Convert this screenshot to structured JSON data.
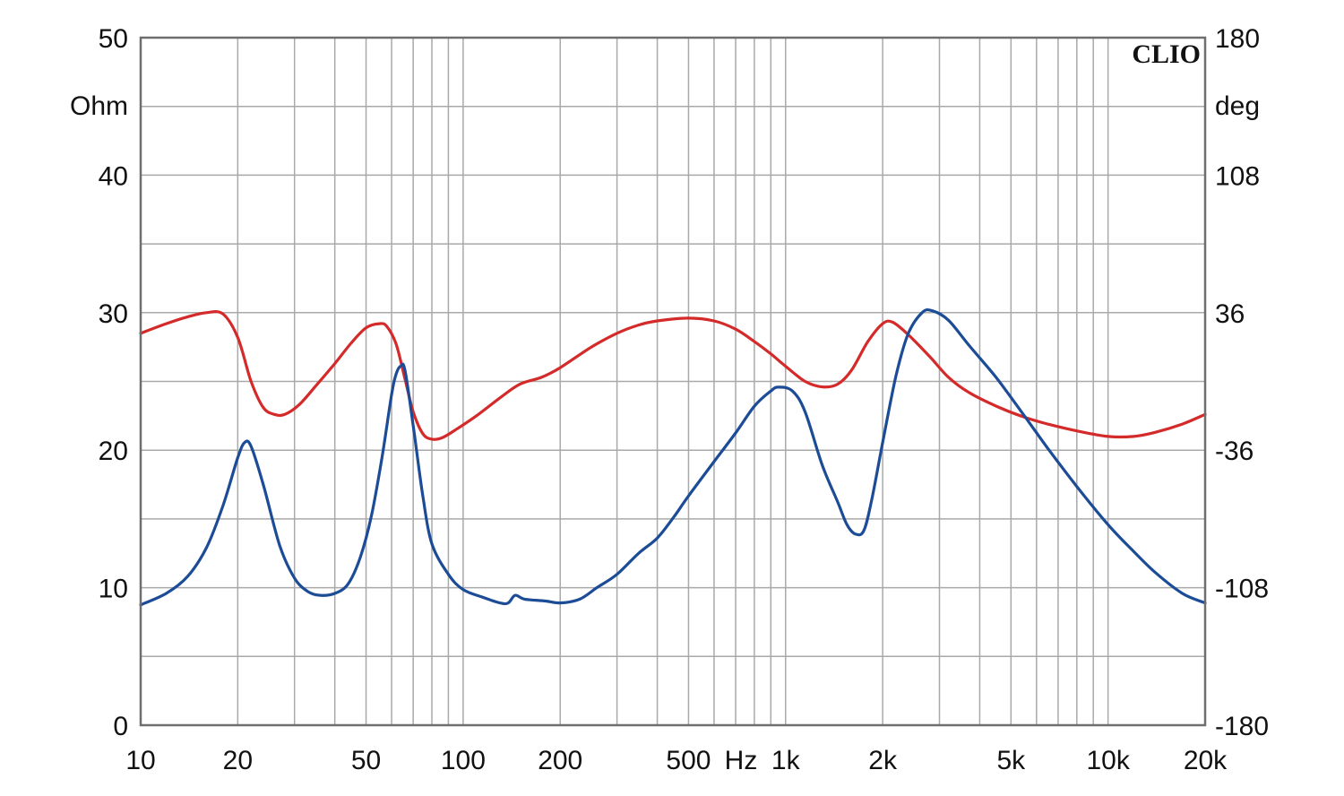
{
  "chart_data": {
    "type": "line",
    "brand": "CLIO",
    "x_scale": "log",
    "xlim": [
      10,
      20000
    ],
    "x_ticks": [
      {
        "value": 10,
        "label": "10"
      },
      {
        "value": 20,
        "label": "20"
      },
      {
        "value": 50,
        "label": "50"
      },
      {
        "value": 100,
        "label": "100"
      },
      {
        "value": 200,
        "label": "200"
      },
      {
        "value": 500,
        "label": "500"
      },
      {
        "value": 1000,
        "label": "1k"
      },
      {
        "value": 2000,
        "label": "2k"
      },
      {
        "value": 5000,
        "label": "5k"
      },
      {
        "value": 10000,
        "label": "10k"
      },
      {
        "value": 20000,
        "label": "20k"
      }
    ],
    "x_unit_label": "Hz",
    "left_axis": {
      "unit": "Ohm",
      "ylim": [
        0,
        50
      ],
      "ticks": [
        {
          "value": 0,
          "label": "0"
        },
        {
          "value": 10,
          "label": "10"
        },
        {
          "value": 20,
          "label": "20"
        },
        {
          "value": 30,
          "label": "30"
        },
        {
          "value": 40,
          "label": "40"
        },
        {
          "value": 50,
          "label": "50"
        }
      ]
    },
    "right_axis": {
      "unit": "deg",
      "ylim": [
        -180,
        180
      ],
      "ticks": [
        {
          "value": -180,
          "label": "-180"
        },
        {
          "value": -108,
          "label": "-108"
        },
        {
          "value": -36,
          "label": "-36"
        },
        {
          "value": 36,
          "label": "36"
        },
        {
          "value": 108,
          "label": "108"
        },
        {
          "value": 180,
          "label": "180"
        }
      ]
    },
    "grid": true,
    "series": [
      {
        "axis": "left",
        "color": "#d42a2a",
        "points": [
          [
            10,
            28.5
          ],
          [
            12,
            29.2
          ],
          [
            14,
            29.7
          ],
          [
            16,
            30.0
          ],
          [
            18,
            29.9
          ],
          [
            20,
            28.2
          ],
          [
            22,
            25.0
          ],
          [
            24,
            23.1
          ],
          [
            26,
            22.6
          ],
          [
            28,
            22.6
          ],
          [
            31,
            23.3
          ],
          [
            35,
            24.7
          ],
          [
            40,
            26.3
          ],
          [
            45,
            27.8
          ],
          [
            50,
            28.9
          ],
          [
            55,
            29.2
          ],
          [
            58,
            29.0
          ],
          [
            62,
            27.7
          ],
          [
            66,
            25.2
          ],
          [
            70,
            22.8
          ],
          [
            75,
            21.2
          ],
          [
            80,
            20.8
          ],
          [
            86,
            20.9
          ],
          [
            95,
            21.5
          ],
          [
            110,
            22.5
          ],
          [
            130,
            23.8
          ],
          [
            150,
            24.8
          ],
          [
            175,
            25.3
          ],
          [
            200,
            26.0
          ],
          [
            250,
            27.5
          ],
          [
            300,
            28.5
          ],
          [
            350,
            29.1
          ],
          [
            400,
            29.4
          ],
          [
            500,
            29.6
          ],
          [
            600,
            29.4
          ],
          [
            700,
            28.8
          ],
          [
            800,
            27.9
          ],
          [
            900,
            27.0
          ],
          [
            1000,
            26.1
          ],
          [
            1150,
            25.0
          ],
          [
            1300,
            24.6
          ],
          [
            1450,
            24.8
          ],
          [
            1600,
            25.8
          ],
          [
            1800,
            27.9
          ],
          [
            2000,
            29.2
          ],
          [
            2150,
            29.3
          ],
          [
            2400,
            28.4
          ],
          [
            2800,
            26.8
          ],
          [
            3200,
            25.3
          ],
          [
            3700,
            24.2
          ],
          [
            4500,
            23.2
          ],
          [
            5500,
            22.4
          ],
          [
            6500,
            21.9
          ],
          [
            8000,
            21.4
          ],
          [
            10000,
            21.0
          ],
          [
            12000,
            21.0
          ],
          [
            14000,
            21.3
          ],
          [
            17000,
            21.9
          ],
          [
            20000,
            22.6
          ]
        ]
      },
      {
        "axis": "right",
        "color": "#1d4c97",
        "points": [
          [
            10,
            -117
          ],
          [
            12,
            -111
          ],
          [
            14,
            -102
          ],
          [
            16,
            -87
          ],
          [
            18,
            -65
          ],
          [
            20,
            -40
          ],
          [
            21,
            -32
          ],
          [
            22,
            -34
          ],
          [
            24,
            -54
          ],
          [
            27,
            -86
          ],
          [
            30,
            -103
          ],
          [
            33,
            -110
          ],
          [
            36,
            -112
          ],
          [
            40,
            -111
          ],
          [
            44,
            -106
          ],
          [
            48,
            -92
          ],
          [
            52,
            -70
          ],
          [
            56,
            -40
          ],
          [
            60,
            -7
          ],
          [
            62,
            4
          ],
          [
            64,
            8
          ],
          [
            66,
            6
          ],
          [
            70,
            -23
          ],
          [
            75,
            -60
          ],
          [
            80,
            -85
          ],
          [
            90,
            -101
          ],
          [
            100,
            -109
          ],
          [
            115,
            -113
          ],
          [
            130,
            -116
          ],
          [
            138,
            -116
          ],
          [
            145,
            -112
          ],
          [
            155,
            -114
          ],
          [
            180,
            -115
          ],
          [
            200,
            -116
          ],
          [
            230,
            -114
          ],
          [
            260,
            -108
          ],
          [
            300,
            -101
          ],
          [
            350,
            -90
          ],
          [
            400,
            -82
          ],
          [
            450,
            -71
          ],
          [
            500,
            -60
          ],
          [
            600,
            -42
          ],
          [
            700,
            -27
          ],
          [
            800,
            -13
          ],
          [
            900,
            -5
          ],
          [
            950,
            -3
          ],
          [
            1050,
            -5
          ],
          [
            1150,
            -16
          ],
          [
            1300,
            -44
          ],
          [
            1450,
            -63
          ],
          [
            1550,
            -75
          ],
          [
            1650,
            -80
          ],
          [
            1750,
            -78
          ],
          [
            1850,
            -62
          ],
          [
            2000,
            -32
          ],
          [
            2200,
            3
          ],
          [
            2400,
            25
          ],
          [
            2650,
            36
          ],
          [
            2850,
            37
          ],
          [
            3200,
            32
          ],
          [
            3700,
            19
          ],
          [
            4500,
            2
          ],
          [
            5500,
            -18
          ],
          [
            6500,
            -35
          ],
          [
            8000,
            -55
          ],
          [
            10000,
            -75
          ],
          [
            12000,
            -89
          ],
          [
            14000,
            -100
          ],
          [
            17000,
            -111
          ],
          [
            20000,
            -116
          ]
        ]
      }
    ]
  }
}
